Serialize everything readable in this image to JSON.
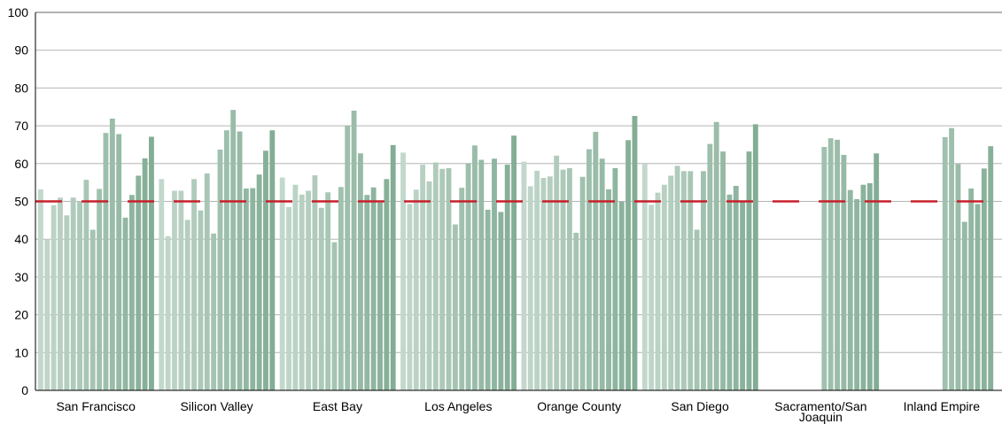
{
  "chart_data": {
    "type": "bar",
    "title": "",
    "xlabel": "",
    "ylabel": "",
    "ylim": [
      0,
      100
    ],
    "yticks": [
      0,
      10,
      20,
      30,
      40,
      50,
      60,
      70,
      80,
      90,
      100
    ],
    "grid": true,
    "reference_line": {
      "value": 50,
      "style": "dashed",
      "color": "#c8202a"
    },
    "bar_color_light": "#c3d8cc",
    "bar_color_dark": "#83ad95",
    "categories": [
      "San Francisco",
      "Silicon Valley",
      "East Bay",
      "Los Angeles",
      "Orange County",
      "San Diego",
      "Sacramento/San Joaquin",
      "Inland Empire"
    ],
    "groups": [
      {
        "name": "San Francisco",
        "values": [
          53.2,
          39.8,
          49.0,
          51.0,
          46.3,
          51.0,
          50.0,
          55.7,
          42.5,
          53.3,
          68.1,
          71.9,
          67.8,
          45.7,
          51.7,
          56.8,
          61.4,
          67.1
        ]
      },
      {
        "name": "Silicon Valley",
        "values": [
          55.9,
          40.8,
          52.8,
          52.8,
          45.1,
          55.9,
          47.6,
          57.4,
          41.5,
          63.7,
          68.8,
          74.2,
          68.5,
          53.4,
          53.5,
          57.1,
          63.4,
          68.8
        ]
      },
      {
        "name": "East Bay",
        "values": [
          56.3,
          48.5,
          54.4,
          51.8,
          52.8,
          56.9,
          48.3,
          52.4,
          39.2,
          53.8,
          70.1,
          74.0,
          62.7,
          51.7,
          53.7,
          49.7,
          55.9,
          64.9
        ]
      },
      {
        "name": "Los Angeles",
        "values": [
          62.9,
          49.3,
          53.1,
          59.7,
          55.3,
          60.3,
          58.6,
          58.8,
          43.9,
          53.6,
          60.1,
          64.8,
          61.0,
          47.8,
          61.3,
          47.2,
          59.7,
          67.4
        ]
      },
      {
        "name": "Orange County",
        "values": [
          60.5,
          54.0,
          58.1,
          56.2,
          56.6,
          62.1,
          58.4,
          58.8,
          41.7,
          56.5,
          63.8,
          68.4,
          61.3,
          53.2,
          58.8,
          49.9,
          66.2,
          72.6
        ]
      },
      {
        "name": "San Diego",
        "values": [
          59.9,
          49.1,
          52.3,
          54.4,
          56.8,
          59.4,
          58.0,
          58.0,
          42.5,
          58.0,
          65.2,
          71.0,
          63.2,
          51.8,
          54.1,
          49.9,
          63.2,
          70.4
        ]
      },
      {
        "name": "Sacramento/San Joaquin",
        "values": [
          null,
          null,
          null,
          null,
          null,
          null,
          null,
          null,
          null,
          64.4,
          66.7,
          66.3,
          62.3,
          53.0,
          50.6,
          54.4,
          54.8,
          62.7
        ]
      },
      {
        "name": "Inland Empire",
        "values": [
          null,
          null,
          null,
          null,
          null,
          null,
          null,
          null,
          null,
          67.0,
          69.4,
          59.9,
          44.6,
          53.4,
          49.3,
          58.7,
          64.6,
          null
        ]
      }
    ]
  }
}
